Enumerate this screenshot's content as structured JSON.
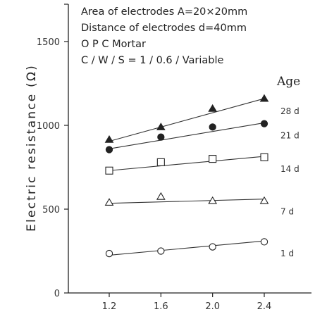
{
  "chart_data": {
    "type": "scatter",
    "ylabel": "Electric resistance (Ω)",
    "xlabel": "",
    "xlim": [
      0.9,
      2.6
    ],
    "ylim": [
      0,
      1650
    ],
    "x_ticks": [
      "1.2",
      "1.6",
      "2.0",
      "2.4"
    ],
    "y_ticks": [
      "0",
      "500",
      "1000",
      "1500"
    ],
    "conditions": [
      "Area of electrodes  A=20×20mm",
      "Distance of electrodes  d=40mm",
      "O P C        Mortar",
      "C / W / S  =  1 / 0.6 / Variable"
    ],
    "legend_title": "Age",
    "series": [
      {
        "name": "28 d",
        "marker": "filled-triangle",
        "x": [
          1.2,
          1.6,
          2.0,
          2.4
        ],
        "y": [
          915,
          990,
          1100,
          1160
        ],
        "fit": [
          905,
          1160
        ]
      },
      {
        "name": "21 d",
        "marker": "filled-circle",
        "x": [
          1.2,
          1.6,
          2.0,
          2.4
        ],
        "y": [
          855,
          930,
          990,
          1010
        ],
        "fit": [
          860,
          1015
        ]
      },
      {
        "name": "14 d",
        "marker": "open-square",
        "x": [
          1.2,
          1.6,
          2.0,
          2.4
        ],
        "y": [
          730,
          780,
          800,
          810
        ],
        "fit": [
          730,
          815
        ]
      },
      {
        "name": "7 d",
        "marker": "open-triangle",
        "x": [
          1.2,
          1.6,
          2.0,
          2.4
        ],
        "y": [
          540,
          575,
          550,
          550
        ],
        "fit": [
          535,
          560
        ]
      },
      {
        "name": "1 d",
        "marker": "open-circle",
        "x": [
          1.2,
          1.6,
          2.0,
          2.4
        ],
        "y": [
          235,
          250,
          275,
          305
        ],
        "fit": [
          225,
          310
        ]
      }
    ]
  }
}
